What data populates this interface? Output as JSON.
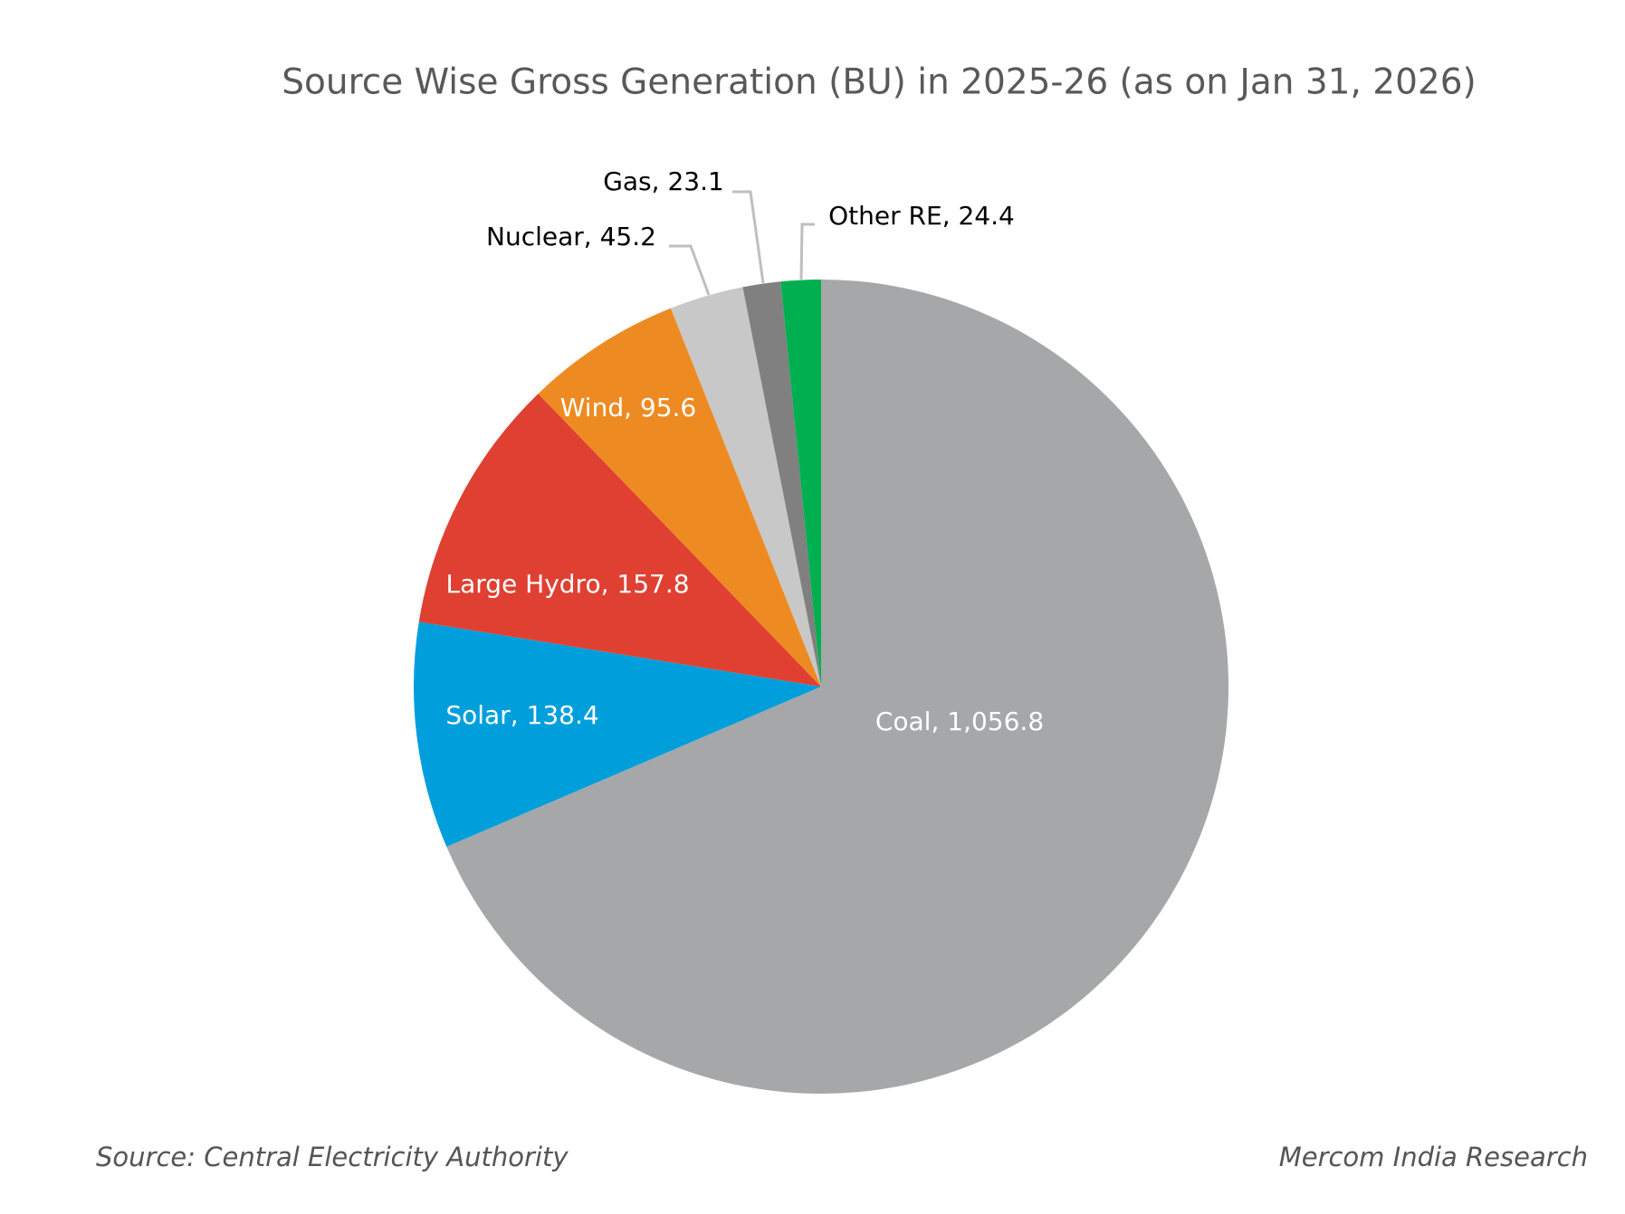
{
  "chart_data": {
    "type": "pie",
    "title": "Source Wise Gross Generation (BU) in 2025-26 (as on Jan 31, 2026)",
    "values": [
      1056.8,
      138.4,
      157.8,
      95.6,
      45.2,
      23.1,
      24.4
    ],
    "value_labels": [
      "Coal, 1,056.8",
      "Solar, 138.4",
      "Large Hydro, 157.8",
      "Wind, 95.6",
      "Nuclear, 45.2",
      "Gas, 23.1",
      "Other RE, 24.4"
    ],
    "colors": [
      "#a6a7a9",
      "#009fdc",
      "#e04032",
      "#ed8b22",
      "#c8c8c8",
      "#808080",
      "#00b050"
    ],
    "source": "Source: Central Electricity Authority",
    "credit": "Mercom India Research"
  }
}
